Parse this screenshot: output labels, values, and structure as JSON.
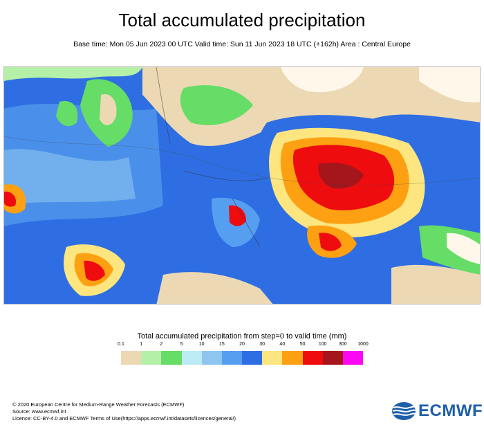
{
  "header": {
    "title": "Total accumulated precipitation",
    "subtitle": "Base time: Mon 05 Jun 2023 00 UTC Valid time: Sun 11 Jun 2023 18 UTC (+162h) Area : Central Europe"
  },
  "legend": {
    "title": "Total accumulated precipitation from step=0 to valid time (mm)",
    "thresholds": [
      "0.1",
      "1",
      "2",
      "5",
      "10",
      "15",
      "20",
      "30",
      "40",
      "50",
      "100",
      "300",
      "1000"
    ],
    "colors": [
      "#ecd9b4",
      "#b5f0a8",
      "#65dd66",
      "#bcebf5",
      "#8ec6ef",
      "#569ef0",
      "#2f6ee2",
      "#fde680",
      "#fda112",
      "#ee0c0e",
      "#a4151c",
      "#fa08f4"
    ]
  },
  "footer": {
    "line1": "© 2020 European Centre for Medium-Range Weather Forecasts (ECMWF)",
    "line2": "Source: www.ecmwf.int",
    "line3": "Licence: CC-BY-4.0 and ECMWF Terms of Use(https://apps.ecmwf.int/datasets/licences/general/)"
  },
  "logo": {
    "text": "ECMWF"
  }
}
